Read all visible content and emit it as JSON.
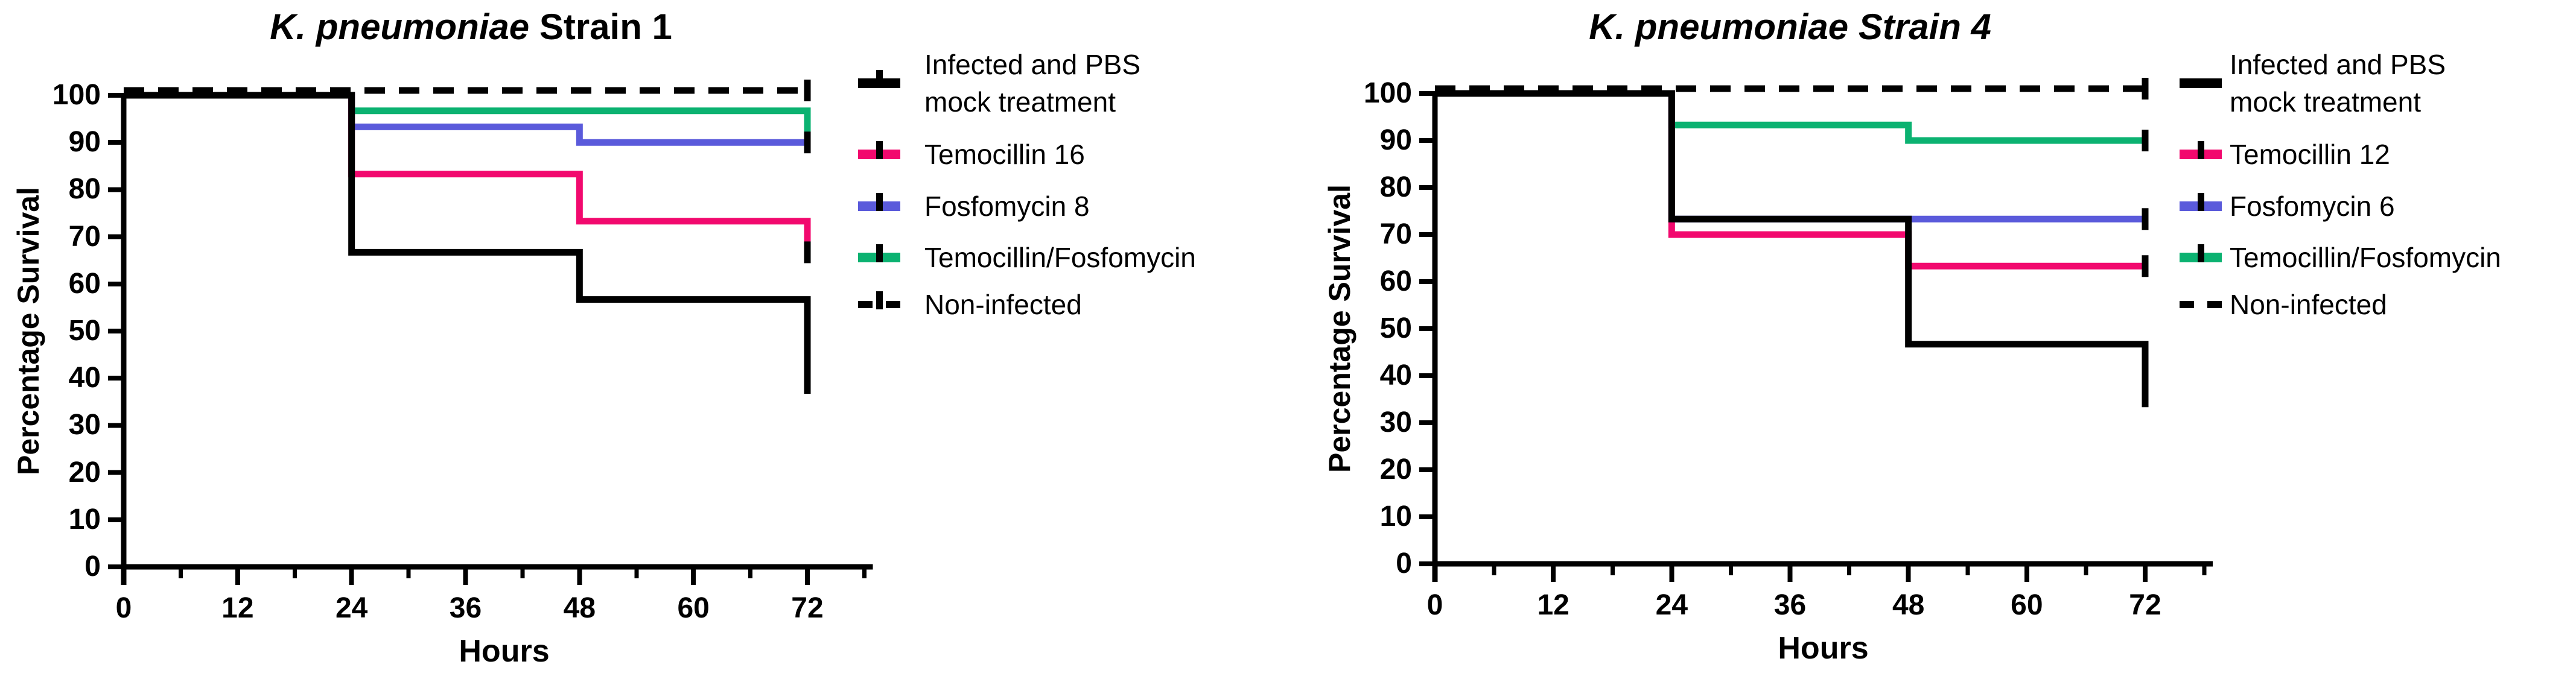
{
  "figure": {
    "background": "#ffffff",
    "description": "Kaplan-Meier percentage survival curves for two K. pneumoniae strains under different antibiotic treatments"
  },
  "palette": {
    "pbs": "#000000",
    "temocillin": "#F2096E",
    "fosfomycin": "#5A5ADB",
    "combination": "#0BB271",
    "non_infected": "#000000"
  },
  "charts": [
    {
      "title_em": "K. pneumoniae",
      "title_rest": " Strain 1",
      "x_label": "Hours",
      "y_label": "Percentage Survival",
      "y_ticks": [
        100,
        90,
        80,
        70,
        60,
        50,
        40,
        30,
        20,
        10,
        0
      ],
      "x_ticks": [
        0,
        12,
        24,
        36,
        48,
        60,
        72
      ],
      "x_minor_ticks": [
        6,
        18,
        30,
        42,
        54,
        66,
        78
      ],
      "legend": [
        {
          "label_lines": [
            "Infected and PBS",
            "mock treatment"
          ],
          "color": "#000000",
          "dashed": false,
          "tick": true
        },
        {
          "label_lines": [
            "Temocillin 16"
          ],
          "color": "#F2096E",
          "dashed": false,
          "tick": true
        },
        {
          "label_lines": [
            "Fosfomycin 8"
          ],
          "color": "#5A5ADB",
          "dashed": false,
          "tick": true
        },
        {
          "label_lines": [
            "Temocillin/Fosfomycin"
          ],
          "color": "#0BB271",
          "dashed": false,
          "tick": true
        },
        {
          "label_lines": [
            "Non-infected"
          ],
          "color": "#000000",
          "dashed": true,
          "tick": true
        }
      ],
      "chart_data": {
        "type": "line",
        "subtype": "kaplan-meier-step",
        "title": "K. pneumoniae Strain 1",
        "xlabel": "Hours",
        "ylabel": "Percentage Survival",
        "xlim": [
          0,
          78
        ],
        "ylim": [
          0,
          100
        ],
        "grid": false,
        "legend_position": "right",
        "series": [
          {
            "name": "Infected and PBS mock treatment",
            "color": "#000000",
            "style": "solid",
            "points": [
              [
                0,
                100
              ],
              [
                24,
                66.7
              ],
              [
                48,
                56.7
              ],
              [
                72,
                36.7
              ]
            ],
            "censor_tick_at_end": false
          },
          {
            "name": "Temocillin 16",
            "color": "#F2096E",
            "style": "solid",
            "points": [
              [
                0,
                100
              ],
              [
                24,
                83.3
              ],
              [
                48,
                73.3
              ],
              [
                72,
                66.7
              ]
            ],
            "censor_tick_at_end": true
          },
          {
            "name": "Fosfomycin 8",
            "color": "#5A5ADB",
            "style": "solid",
            "points": [
              [
                0,
                100
              ],
              [
                24,
                93.3
              ],
              [
                48,
                90
              ],
              [
                72,
                90
              ]
            ],
            "censor_tick_at_end": false
          },
          {
            "name": "Temocillin/Fosfomycin",
            "color": "#0BB271",
            "style": "solid",
            "points": [
              [
                0,
                100
              ],
              [
                24,
                96.7
              ],
              [
                48,
                96.7
              ],
              [
                72,
                90
              ]
            ],
            "censor_tick_at_end": true
          },
          {
            "name": "Non-infected",
            "color": "#000000",
            "style": "dashed",
            "points": [
              [
                0,
                100
              ],
              [
                24,
                100
              ],
              [
                48,
                100
              ],
              [
                72,
                100
              ]
            ],
            "censor_tick_at_end": true
          }
        ]
      }
    },
    {
      "title_em": "K. pneumoniae",
      "title_rest": " Strain 4",
      "x_label": "Hours",
      "y_label": "Percentage Survival",
      "y_ticks": [
        100,
        90,
        80,
        70,
        60,
        50,
        40,
        30,
        20,
        10,
        0
      ],
      "x_ticks": [
        0,
        12,
        24,
        36,
        48,
        60,
        72
      ],
      "x_minor_ticks": [
        6,
        18,
        30,
        42,
        54,
        66,
        78
      ],
      "legend": [
        {
          "label_lines": [
            "Infected and PBS",
            "mock treatment"
          ],
          "color": "#000000",
          "dashed": false,
          "tick": false
        },
        {
          "label_lines": [
            "Temocillin 12"
          ],
          "color": "#F2096E",
          "dashed": false,
          "tick": true
        },
        {
          "label_lines": [
            "Fosfomycin 6"
          ],
          "color": "#5A5ADB",
          "dashed": false,
          "tick": true
        },
        {
          "label_lines": [
            "Temocillin/Fosfomycin"
          ],
          "color": "#0BB271",
          "dashed": false,
          "tick": true
        },
        {
          "label_lines": [
            "Non-infected"
          ],
          "color": "#000000",
          "dashed": true,
          "tick": false
        }
      ],
      "chart_data": {
        "type": "line",
        "subtype": "kaplan-meier-step",
        "title": "K. pneumoniae Strain 4",
        "xlabel": "Hours",
        "ylabel": "Percentage Survival",
        "xlim": [
          0,
          78
        ],
        "ylim": [
          0,
          100
        ],
        "grid": false,
        "legend_position": "right",
        "series": [
          {
            "name": "Infected and PBS mock treatment",
            "color": "#000000",
            "style": "solid",
            "points": [
              [
                0,
                100
              ],
              [
                24,
                73.3
              ],
              [
                48,
                46.7
              ],
              [
                72,
                33.3
              ]
            ],
            "censor_tick_at_end": false
          },
          {
            "name": "Temocillin 12",
            "color": "#F2096E",
            "style": "solid",
            "points": [
              [
                0,
                100
              ],
              [
                24,
                70
              ],
              [
                48,
                63.3
              ],
              [
                72,
                63.3
              ]
            ],
            "censor_tick_at_end": true
          },
          {
            "name": "Fosfomycin 6",
            "color": "#5A5ADB",
            "style": "solid",
            "points": [
              [
                0,
                100
              ],
              [
                24,
                73.3
              ],
              [
                48,
                73.3
              ],
              [
                72,
                73.3
              ]
            ],
            "censor_tick_at_end": true
          },
          {
            "name": "Temocillin/Fosfomycin",
            "color": "#0BB271",
            "style": "solid",
            "points": [
              [
                0,
                100
              ],
              [
                24,
                93.3
              ],
              [
                48,
                90
              ],
              [
                72,
                90
              ]
            ],
            "censor_tick_at_end": true
          },
          {
            "name": "Non-infected",
            "color": "#000000",
            "style": "dashed",
            "points": [
              [
                0,
                100
              ],
              [
                24,
                100
              ],
              [
                48,
                100
              ],
              [
                72,
                100
              ]
            ],
            "censor_tick_at_end": true
          }
        ]
      }
    }
  ]
}
